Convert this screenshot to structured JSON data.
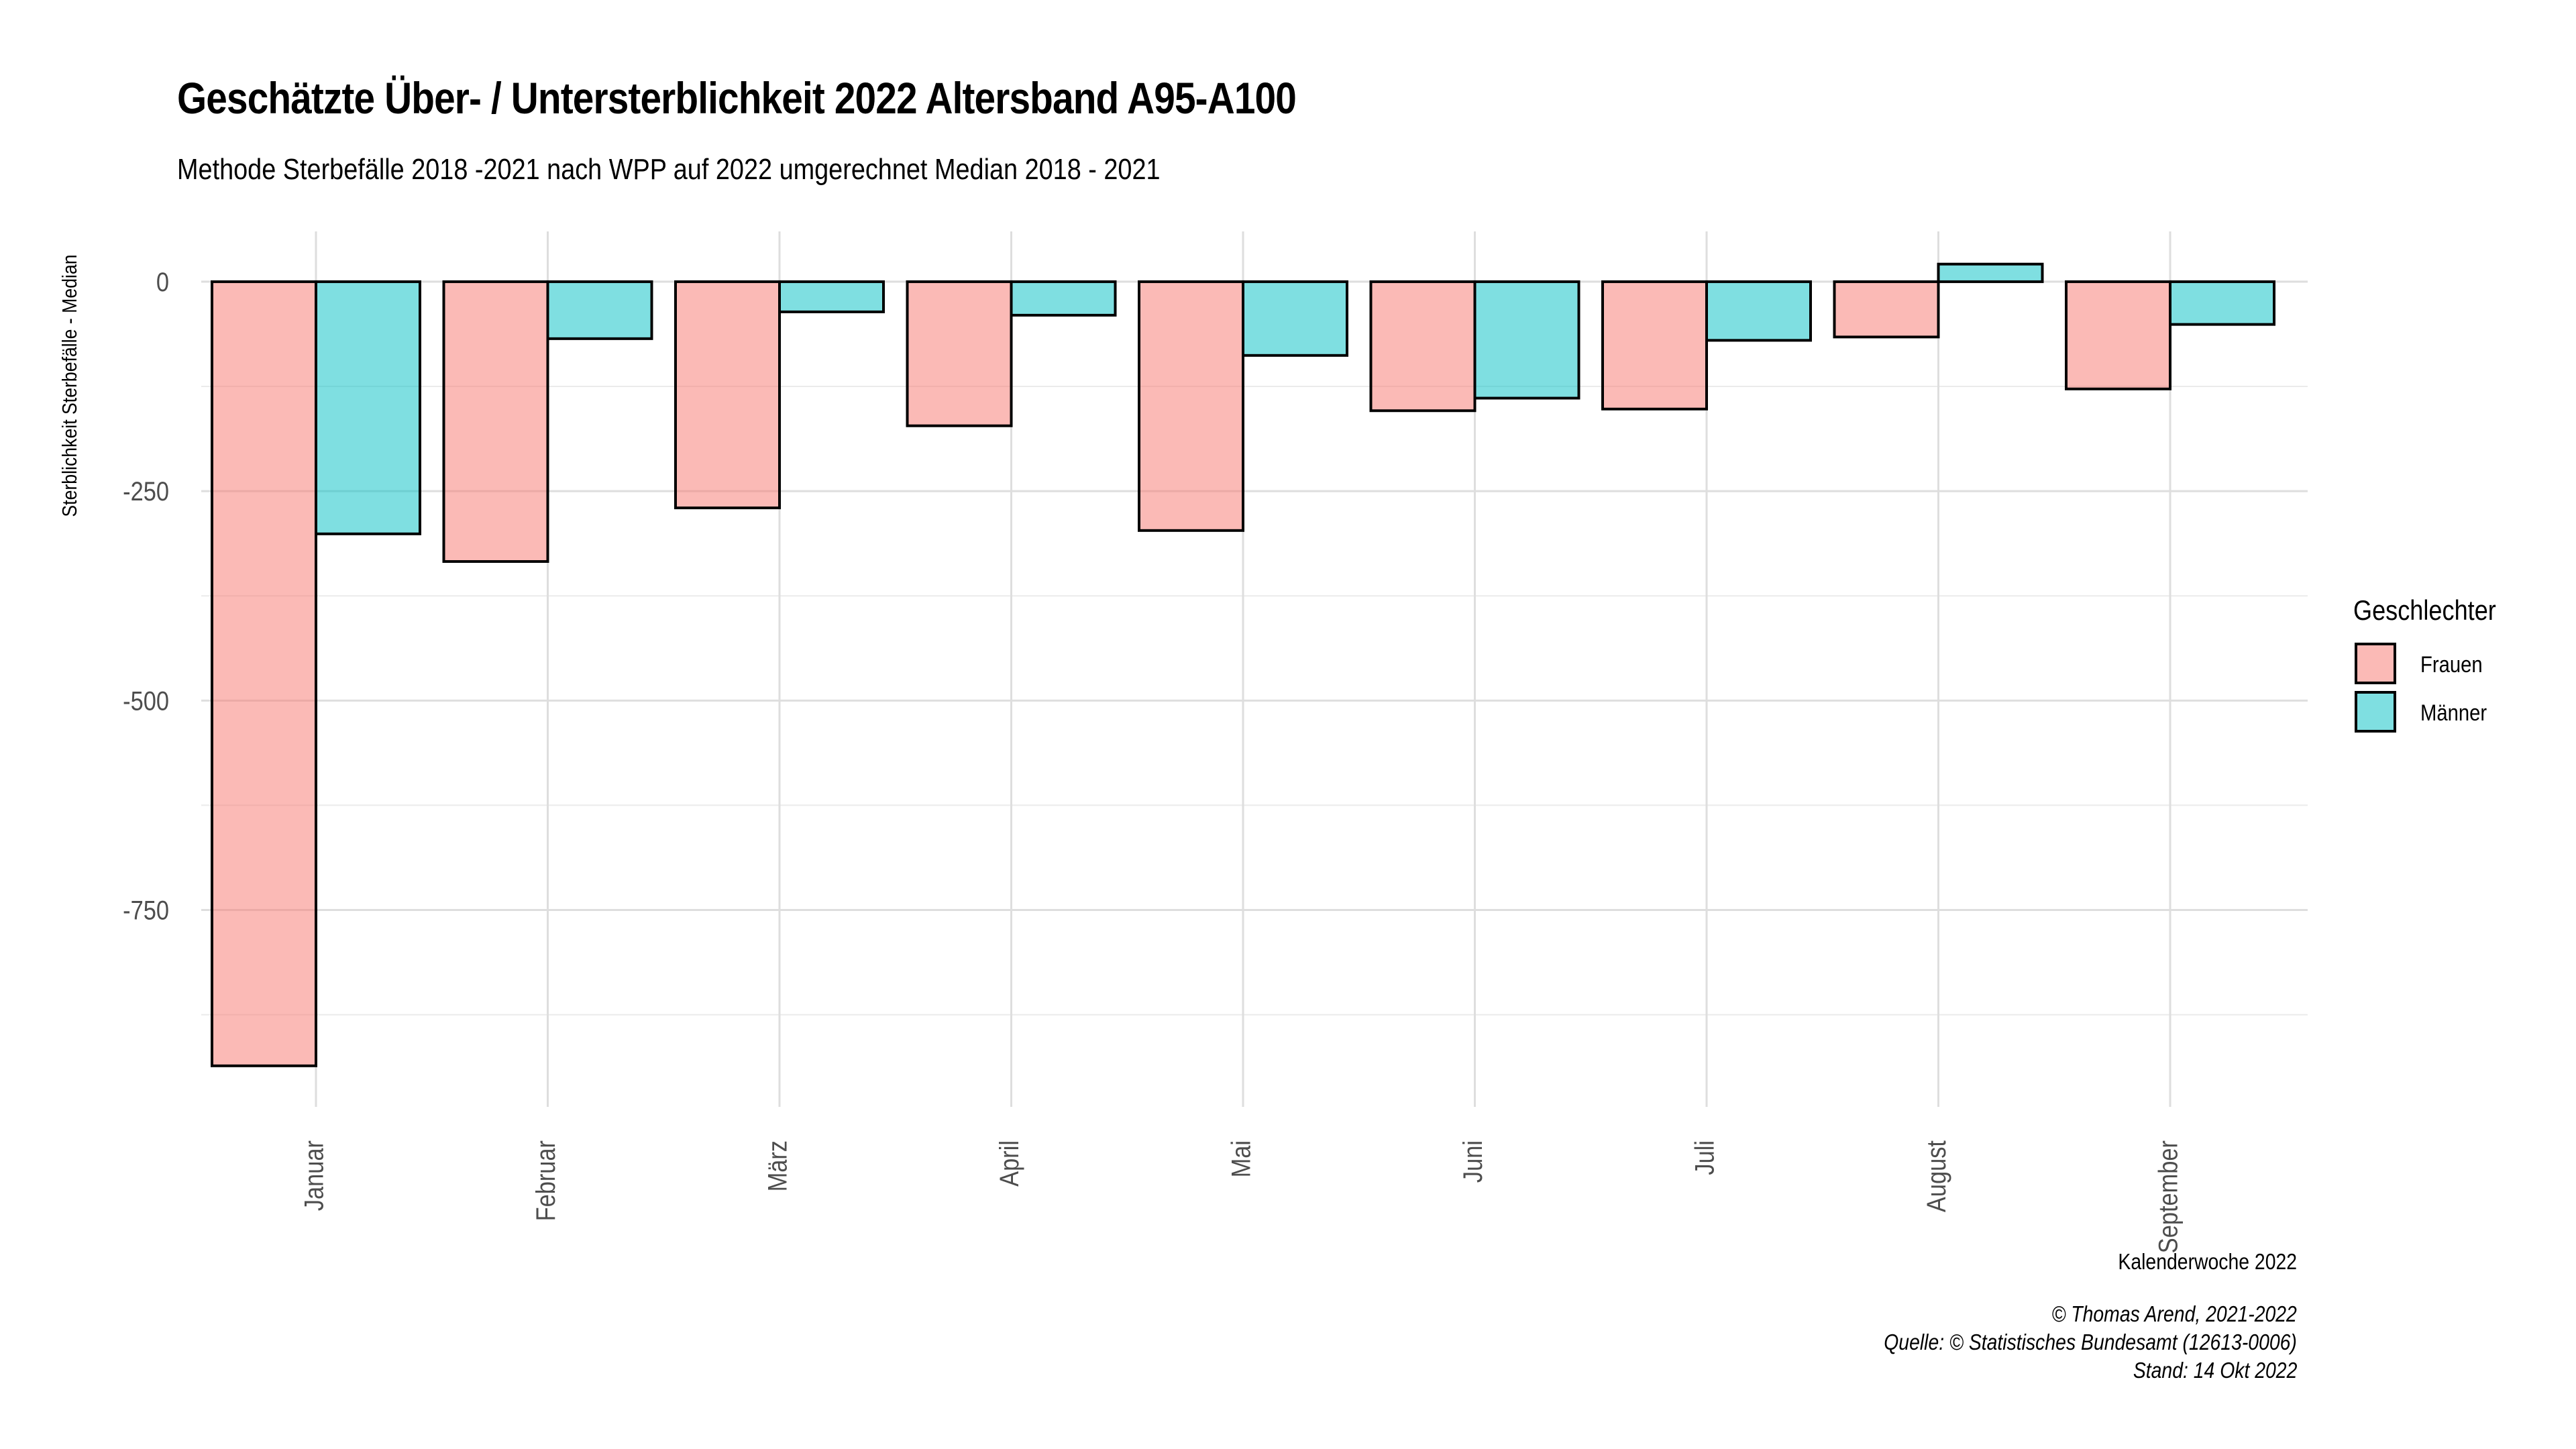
{
  "title": "Geschätzte Über- / Untersterblichkeit 2022 Altersband A95-A100",
  "subtitle": "Methode Sterbefälle 2018 -2021 nach WPP auf 2022 umgerechnet Median 2018 - 2021",
  "caption": {
    "line1": "© Thomas Arend, 2021-2022",
    "line2": "Quelle: © Statistisches Bundesamt (12613-0006)",
    "line3": "Stand: 14 Okt 2022"
  },
  "legend": {
    "title": "Geschlechter",
    "placement": "right",
    "items": [
      {
        "label": "Frauen",
        "color": "#F8766D"
      },
      {
        "label": "Männer",
        "color": "#00BFC4"
      }
    ]
  },
  "chart_data": {
    "type": "bar",
    "title": "Geschätzte Über- / Untersterblichkeit 2022 Altersband A95-A100",
    "subtitle": "Methode Sterbefälle 2018 -2021 nach WPP auf 2022 umgerechnet Median 2018 - 2021",
    "xlabel": "Kalenderwoche 2022",
    "ylabel": "Sterblichkeit Sterbefälle - Median",
    "categories": [
      "Januar",
      "Februar",
      "März",
      "April",
      "Mai",
      "Juni",
      "Juli",
      "August",
      "September"
    ],
    "series": [
      {
        "name": "Frauen",
        "color": "#F8766D",
        "values": [
          -936,
          -334,
          -270,
          -172,
          -297,
          -154,
          -152,
          -66,
          -128
        ]
      },
      {
        "name": "Männer",
        "color": "#00BFC4",
        "values": [
          -301,
          -68,
          -36,
          -40,
          -88,
          -139,
          -70,
          21,
          -51
        ]
      }
    ],
    "ylim": [
      -985,
      60
    ],
    "yticks": [
      0,
      -250,
      -500,
      -750
    ],
    "ytick_labels": [
      "0",
      "-250",
      "-500",
      "-750"
    ],
    "grid": true,
    "bar_opacity": 0.5
  }
}
